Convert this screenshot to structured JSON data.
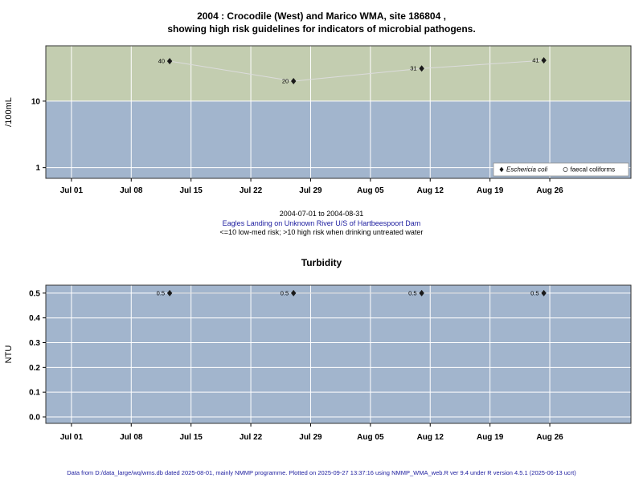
{
  "captions": {
    "date_range": "2004-07-01 to 2004-08-31",
    "site": "Eagles Landing on Unknown River U/S of Hartbeespoort Dam",
    "risk_note": "<=10 low-med risk; >10 high risk when drinking untreated water"
  },
  "footer": "Data from D:/data_large/wq/wms.db dated 2025-08-01, mainly NMMP programme. Plotted on 2025-09-27 13:37:16 using NMMP_WMA_web.R ver 9.4 under R version 4.5.1 (2025-06-13 ucrt)",
  "colors": {
    "plot_bg_blue": "#a2b5cd",
    "band_high_green": "#c3cdb0",
    "grid_white": "#ffffff",
    "marker_black": "#1a1a1a",
    "line_light": "#dcdcdc",
    "text_blue": "#2020a0",
    "border_dark": "#333333"
  },
  "chart_data": [
    {
      "type": "scatter",
      "title": "2004 : Crocodile (West) and Marico WMA, site 186804 , showing high risk guidelines for indicators of microbial pathogens.",
      "title_lines": [
        "2004 : Crocodile (West) and Marico WMA, site 186804 ,",
        "showing high risk guidelines for indicators of microbial pathogens."
      ],
      "ylabel": "/100mL",
      "yscale": "log",
      "ylim": [
        0.69,
        68
      ],
      "yticks": [
        1,
        10
      ],
      "ytick_labels": [
        "1",
        "10"
      ],
      "xlim_days": [
        -3,
        65.5
      ],
      "xtick_days": [
        0,
        7,
        14,
        21,
        28,
        35,
        42,
        49,
        56
      ],
      "xtick_labels": [
        "Jul 01",
        "Jul 08",
        "Jul 15",
        "Jul 22",
        "Jul 29",
        "Aug 05",
        "Aug 12",
        "Aug 19",
        "Aug 26"
      ],
      "guideline_value": 10,
      "grid": true,
      "series": [
        {
          "name": "Eschericia coli",
          "marker": "diamond",
          "x_days": [
            11.5,
            26,
            41,
            55.3
          ],
          "values": [
            40,
            20,
            31,
            41
          ],
          "point_labels": [
            "40",
            "20",
            "31",
            "41"
          ]
        },
        {
          "name": "faecal coliforms",
          "marker": "circle",
          "x_days": [],
          "values": [],
          "point_labels": []
        }
      ],
      "legend": {
        "position": "bottom-right",
        "entries": [
          {
            "label": "Eschericia coli",
            "marker": "diamond",
            "italic": true
          },
          {
            "label": "faecal coliforms",
            "marker": "circle",
            "italic": false
          }
        ]
      }
    },
    {
      "type": "scatter",
      "title": "Turbidity",
      "ylabel": "NTU",
      "yscale": "linear",
      "ylim": [
        -0.026,
        0.532
      ],
      "yticks": [
        0,
        0.1,
        0.2,
        0.3,
        0.4,
        0.5
      ],
      "ytick_labels": [
        "0.0",
        "0.1",
        "0.2",
        "0.3",
        "0.4",
        "0.5"
      ],
      "xlim_days": [
        -3,
        65.5
      ],
      "xtick_days": [
        0,
        7,
        14,
        21,
        28,
        35,
        42,
        49,
        56
      ],
      "xtick_labels": [
        "Jul 01",
        "Jul 08",
        "Jul 15",
        "Jul 22",
        "Jul 29",
        "Aug 05",
        "Aug 12",
        "Aug 19",
        "Aug 26"
      ],
      "grid": true,
      "series": [
        {
          "name": "Turbidity",
          "marker": "diamond",
          "x_days": [
            11.5,
            26,
            41,
            55.3
          ],
          "values": [
            0.5,
            0.5,
            0.5,
            0.5
          ],
          "point_labels": [
            "0.5",
            "0.5",
            "0.5",
            "0.5"
          ]
        }
      ]
    }
  ]
}
